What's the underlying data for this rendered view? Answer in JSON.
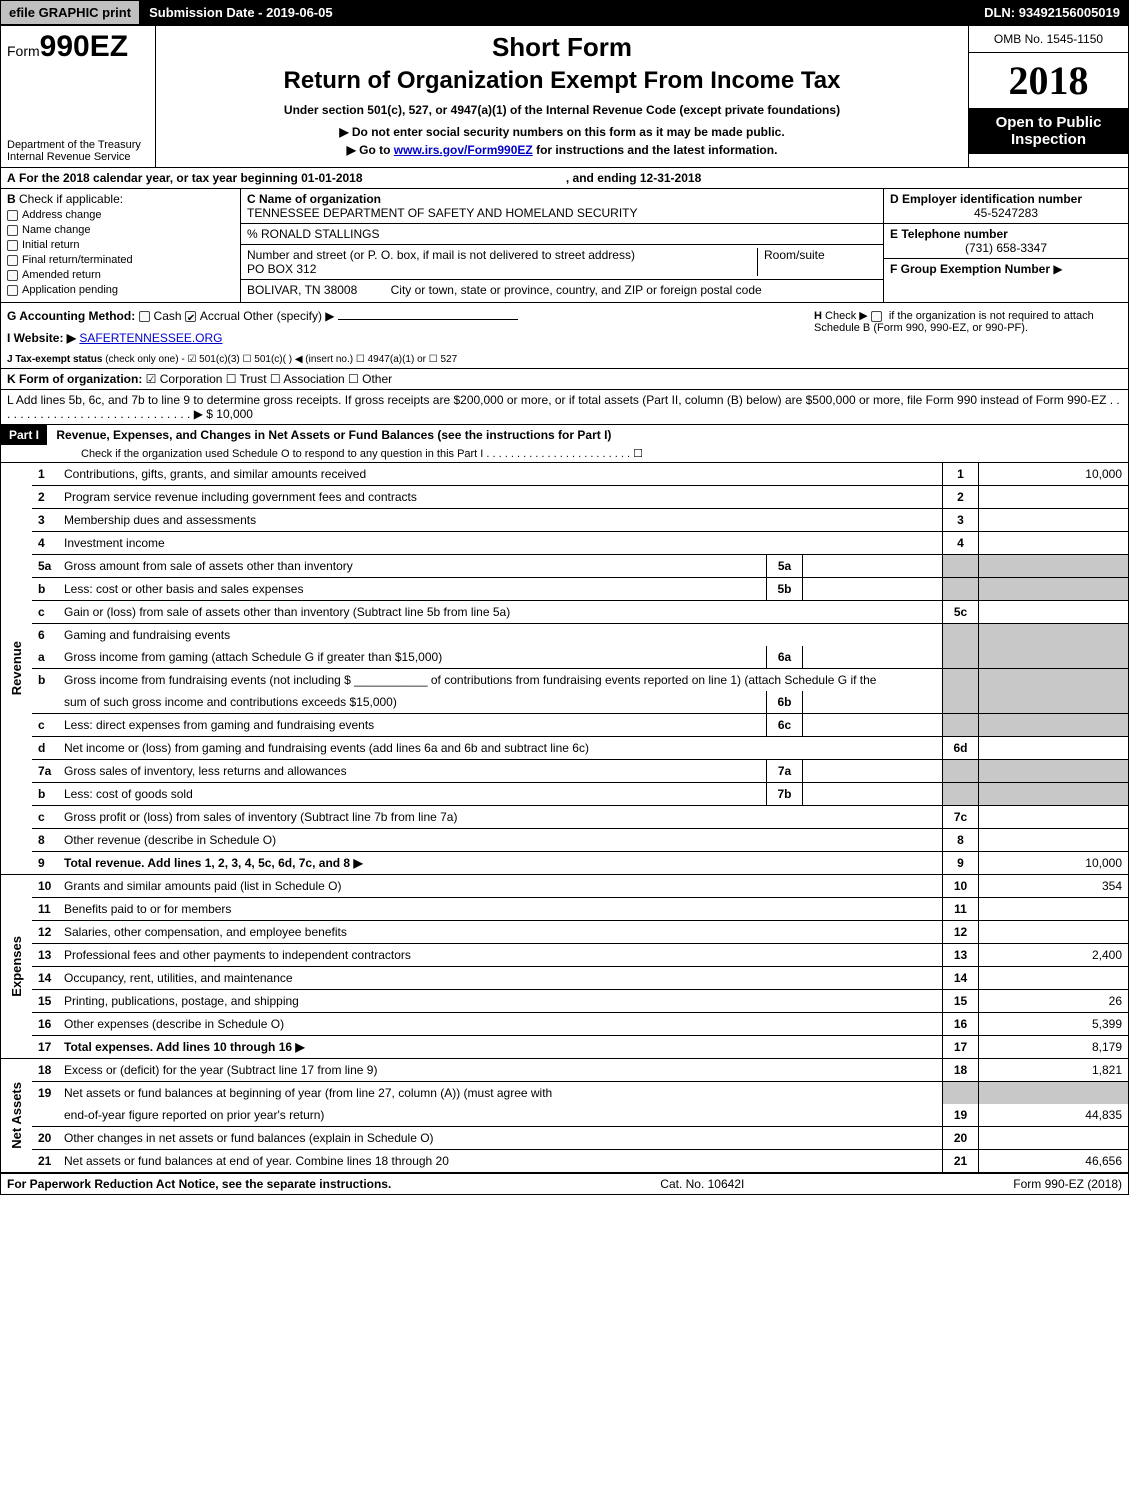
{
  "topbar": {
    "efile": "efile GRAPHIC print",
    "submission": "Submission Date - 2019-06-05",
    "dln_label": "DLN:",
    "dln": "93492156005019"
  },
  "header": {
    "form_prefix": "Form",
    "form_number": "990EZ",
    "dept1": "Department of the Treasury",
    "dept2": "Internal Revenue Service",
    "short_form": "Short Form",
    "title": "Return of Organization Exempt From Income Tax",
    "under_section": "Under section 501(c), 527, or 4947(a)(1) of the Internal Revenue Code (except private foundations)",
    "instr1_prefix": "▶ Do not enter social security numbers on this form as it may be made public.",
    "instr2_prefix": "▶ Go to ",
    "instr2_link": "www.irs.gov/Form990EZ",
    "instr2_suffix": " for instructions and the latest information.",
    "omb": "OMB No. 1545-1150",
    "year": "2018",
    "open_public1": "Open to Public",
    "open_public2": "Inspection"
  },
  "lineA": {
    "label_a": "A",
    "text": "For the 2018 calendar year, or tax year beginning 01-01-2018",
    "ending": ", and ending 12-31-2018"
  },
  "checkB": {
    "label": "B",
    "heading": "Check if applicable:",
    "items": [
      "Address change",
      "Name change",
      "Initial return",
      "Final return/terminated",
      "Amended return",
      "Application pending"
    ]
  },
  "blockC": {
    "c_label": "C Name of organization",
    "org_name": "TENNESSEE DEPARTMENT OF SAFETY AND HOMELAND SECURITY",
    "care_of": "% RONALD STALLINGS",
    "addr_label": "Number and street (or P. O. box, if mail is not delivered to street address)",
    "room_label": "Room/suite",
    "addr": "PO BOX 312",
    "city_label": "City or town, state or province, country, and ZIP or foreign postal code",
    "city": "BOLIVAR, TN  38008"
  },
  "blockD": {
    "d_label": "D Employer identification number",
    "ein": "45-5247283",
    "e_label": "E Telephone number",
    "phone": "(731) 658-3347",
    "f_label": "F Group Exemption Number",
    "f_arrow": "▶"
  },
  "lineG": {
    "label": "G Accounting Method:",
    "cash": "Cash",
    "accrual": "Accrual",
    "other": "Other (specify) ▶"
  },
  "lineH": {
    "label": "H",
    "text1": "Check ▶",
    "text2": "if the organization is not required to attach Schedule B (Form 990, 990-EZ, or 990-PF)."
  },
  "lineI": {
    "label": "I Website: ▶",
    "site": "SAFERTENNESSEE.ORG"
  },
  "lineJ": {
    "label": "J Tax-exempt status",
    "text": "(check only one) - ☑ 501(c)(3) ☐ 501(c)( ) ◀ (insert no.) ☐ 4947(a)(1) or ☐ 527"
  },
  "lineK": {
    "label": "K Form of organization:",
    "text": "☑ Corporation  ☐ Trust  ☐ Association  ☐ Other"
  },
  "lineL": {
    "text": "L Add lines 5b, 6c, and 7b to line 9 to determine gross receipts. If gross receipts are $200,000 or more, or if total assets (Part II, column (B) below) are $500,000 or more, file Form 990 instead of Form 990-EZ  .  .  .  .  .  .  .  .  .  .  .  .  .  .  .  .  .  .  .  .  .  .  .  .  .  .  .  .  .  .  ▶ $ 10,000"
  },
  "part1": {
    "header": "Part I",
    "title": "Revenue, Expenses, and Changes in Net Assets or Fund Balances (see the instructions for Part I)",
    "sub": "Check if the organization used Schedule O to respond to any question in this Part I .  .  .  .  .  .  .  .  .  .  .  .  .  .  .  .  .  .  .  .  .  .  .  .  ☐"
  },
  "sections": {
    "revenue": "Revenue",
    "expenses": "Expenses",
    "netassets": "Net Assets"
  },
  "rows": [
    {
      "n": "1",
      "label": "Contributions, gifts, grants, and similar amounts received",
      "rn": "1",
      "rv": "10,000"
    },
    {
      "n": "2",
      "label": "Program service revenue including government fees and contracts",
      "rn": "2",
      "rv": ""
    },
    {
      "n": "3",
      "label": "Membership dues and assessments",
      "rn": "3",
      "rv": ""
    },
    {
      "n": "4",
      "label": "Investment income",
      "rn": "4",
      "rv": ""
    },
    {
      "n": "5a",
      "label": "Gross amount from sale of assets other than inventory",
      "mn": "5a",
      "grey_r": true
    },
    {
      "n": "b",
      "label": "Less: cost or other basis and sales expenses",
      "mn": "5b",
      "grey_r": true
    },
    {
      "n": "c",
      "label": "Gain or (loss) from sale of assets other than inventory (Subtract line 5b from line 5a)",
      "rn": "5c",
      "rv": ""
    },
    {
      "n": "6",
      "label": "Gaming and fundraising events",
      "grey_r": true,
      "nobottom": true
    },
    {
      "n": "a",
      "label": "Gross income from gaming (attach Schedule G if greater than $15,000)",
      "mn": "6a",
      "grey_r": true
    },
    {
      "n": "b",
      "label": "Gross income from fundraising events (not including $ ___________ of contributions from fundraising events reported on line 1) (attach Schedule G if the",
      "nobottom": true,
      "grey_r": true
    },
    {
      "n": "",
      "label": "sum of such gross income and contributions exceeds $15,000)",
      "mn": "6b",
      "grey_r": true
    },
    {
      "n": "c",
      "label": "Less: direct expenses from gaming and fundraising events",
      "mn": "6c",
      "grey_r": true
    },
    {
      "n": "d",
      "label": "Net income or (loss) from gaming and fundraising events (add lines 6a and 6b and subtract line 6c)",
      "rn": "6d",
      "rv": ""
    },
    {
      "n": "7a",
      "label": "Gross sales of inventory, less returns and allowances",
      "mn": "7a",
      "grey_r": true
    },
    {
      "n": "b",
      "label": "Less: cost of goods sold",
      "mn": "7b",
      "grey_r": true
    },
    {
      "n": "c",
      "label": "Gross profit or (loss) from sales of inventory (Subtract line 7b from line 7a)",
      "rn": "7c",
      "rv": ""
    },
    {
      "n": "8",
      "label": "Other revenue (describe in Schedule O)",
      "rn": "8",
      "rv": ""
    },
    {
      "n": "9",
      "label": "Total revenue. Add lines 1, 2, 3, 4, 5c, 6d, 7c, and 8",
      "rn": "9",
      "rv": "10,000",
      "bold": true,
      "arrow": true
    }
  ],
  "exp_rows": [
    {
      "n": "10",
      "label": "Grants and similar amounts paid (list in Schedule O)",
      "rn": "10",
      "rv": "354"
    },
    {
      "n": "11",
      "label": "Benefits paid to or for members",
      "rn": "11",
      "rv": ""
    },
    {
      "n": "12",
      "label": "Salaries, other compensation, and employee benefits",
      "rn": "12",
      "rv": ""
    },
    {
      "n": "13",
      "label": "Professional fees and other payments to independent contractors",
      "rn": "13",
      "rv": "2,400"
    },
    {
      "n": "14",
      "label": "Occupancy, rent, utilities, and maintenance",
      "rn": "14",
      "rv": ""
    },
    {
      "n": "15",
      "label": "Printing, publications, postage, and shipping",
      "rn": "15",
      "rv": "26"
    },
    {
      "n": "16",
      "label": "Other expenses (describe in Schedule O)",
      "rn": "16",
      "rv": "5,399"
    },
    {
      "n": "17",
      "label": "Total expenses. Add lines 10 through 16",
      "rn": "17",
      "rv": "8,179",
      "bold": true,
      "arrow": true
    }
  ],
  "net_rows": [
    {
      "n": "18",
      "label": "Excess or (deficit) for the year (Subtract line 17 from line 9)",
      "rn": "18",
      "rv": "1,821"
    },
    {
      "n": "19",
      "label": "Net assets or fund balances at beginning of year (from line 27, column (A)) (must agree with",
      "nobottom": true,
      "grey_r": true
    },
    {
      "n": "",
      "label": "end-of-year figure reported on prior year's return)",
      "rn": "19",
      "rv": "44,835"
    },
    {
      "n": "20",
      "label": "Other changes in net assets or fund balances (explain in Schedule O)",
      "rn": "20",
      "rv": ""
    },
    {
      "n": "21",
      "label": "Net assets or fund balances at end of year. Combine lines 18 through 20",
      "rn": "21",
      "rv": "46,656"
    }
  ],
  "footer": {
    "paperwork": "For Paperwork Reduction Act Notice, see the separate instructions.",
    "catno": "Cat. No. 10642I",
    "formno": "Form 990-EZ (2018)"
  }
}
